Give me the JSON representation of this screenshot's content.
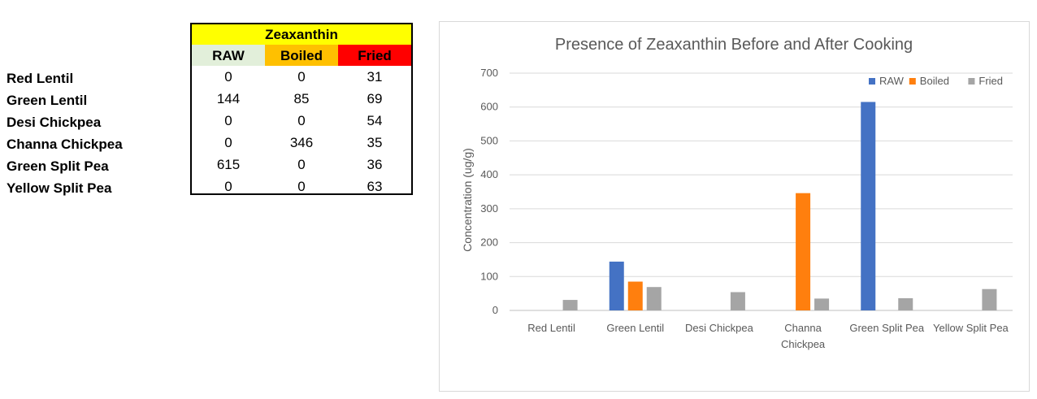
{
  "table": {
    "title": "Zeaxanthin",
    "headers": [
      "RAW",
      "Boiled",
      "Fried"
    ],
    "header_colors": [
      "#e2efda",
      "#ffc000",
      "#ff0000"
    ],
    "title_color": "#ffff00",
    "row_labels": [
      "Red Lentil",
      "Green Lentil",
      "Desi Chickpea",
      "Channa Chickpea",
      "Green Split Pea",
      "Yellow Split Pea"
    ],
    "rows": [
      [
        "0",
        "0",
        "31"
      ],
      [
        "144",
        "85",
        "69"
      ],
      [
        "0",
        "0",
        "54"
      ],
      [
        "0",
        "346",
        "35"
      ],
      [
        "615",
        "0",
        "36"
      ],
      [
        "0",
        "0",
        "63"
      ]
    ]
  },
  "chart_data": {
    "type": "bar",
    "title": "Presence of Zeaxanthin Before and After Cooking",
    "xlabel": "",
    "ylabel": "Concentration (ug/g)",
    "ylim": [
      0,
      700
    ],
    "yticks": [
      0,
      100,
      200,
      300,
      400,
      500,
      600,
      700
    ],
    "grid": true,
    "legend_position": "top-right",
    "categories": [
      [
        "Red Lentil"
      ],
      [
        "Green Lentil"
      ],
      [
        "Desi Chickpea"
      ],
      [
        "Channa",
        "Chickpea"
      ],
      [
        "Green Split Pea"
      ],
      [
        "Yellow Split Pea"
      ]
    ],
    "series": [
      {
        "name": "RAW",
        "color": "#4472c4",
        "values": [
          0,
          144,
          0,
          0,
          615,
          0
        ]
      },
      {
        "name": "Boiled",
        "color": "#ff7f0e",
        "values": [
          0,
          85,
          0,
          346,
          0,
          0
        ]
      },
      {
        "name": "Fried",
        "color": "#a5a5a5",
        "values": [
          31,
          69,
          54,
          35,
          36,
          63
        ]
      }
    ]
  }
}
